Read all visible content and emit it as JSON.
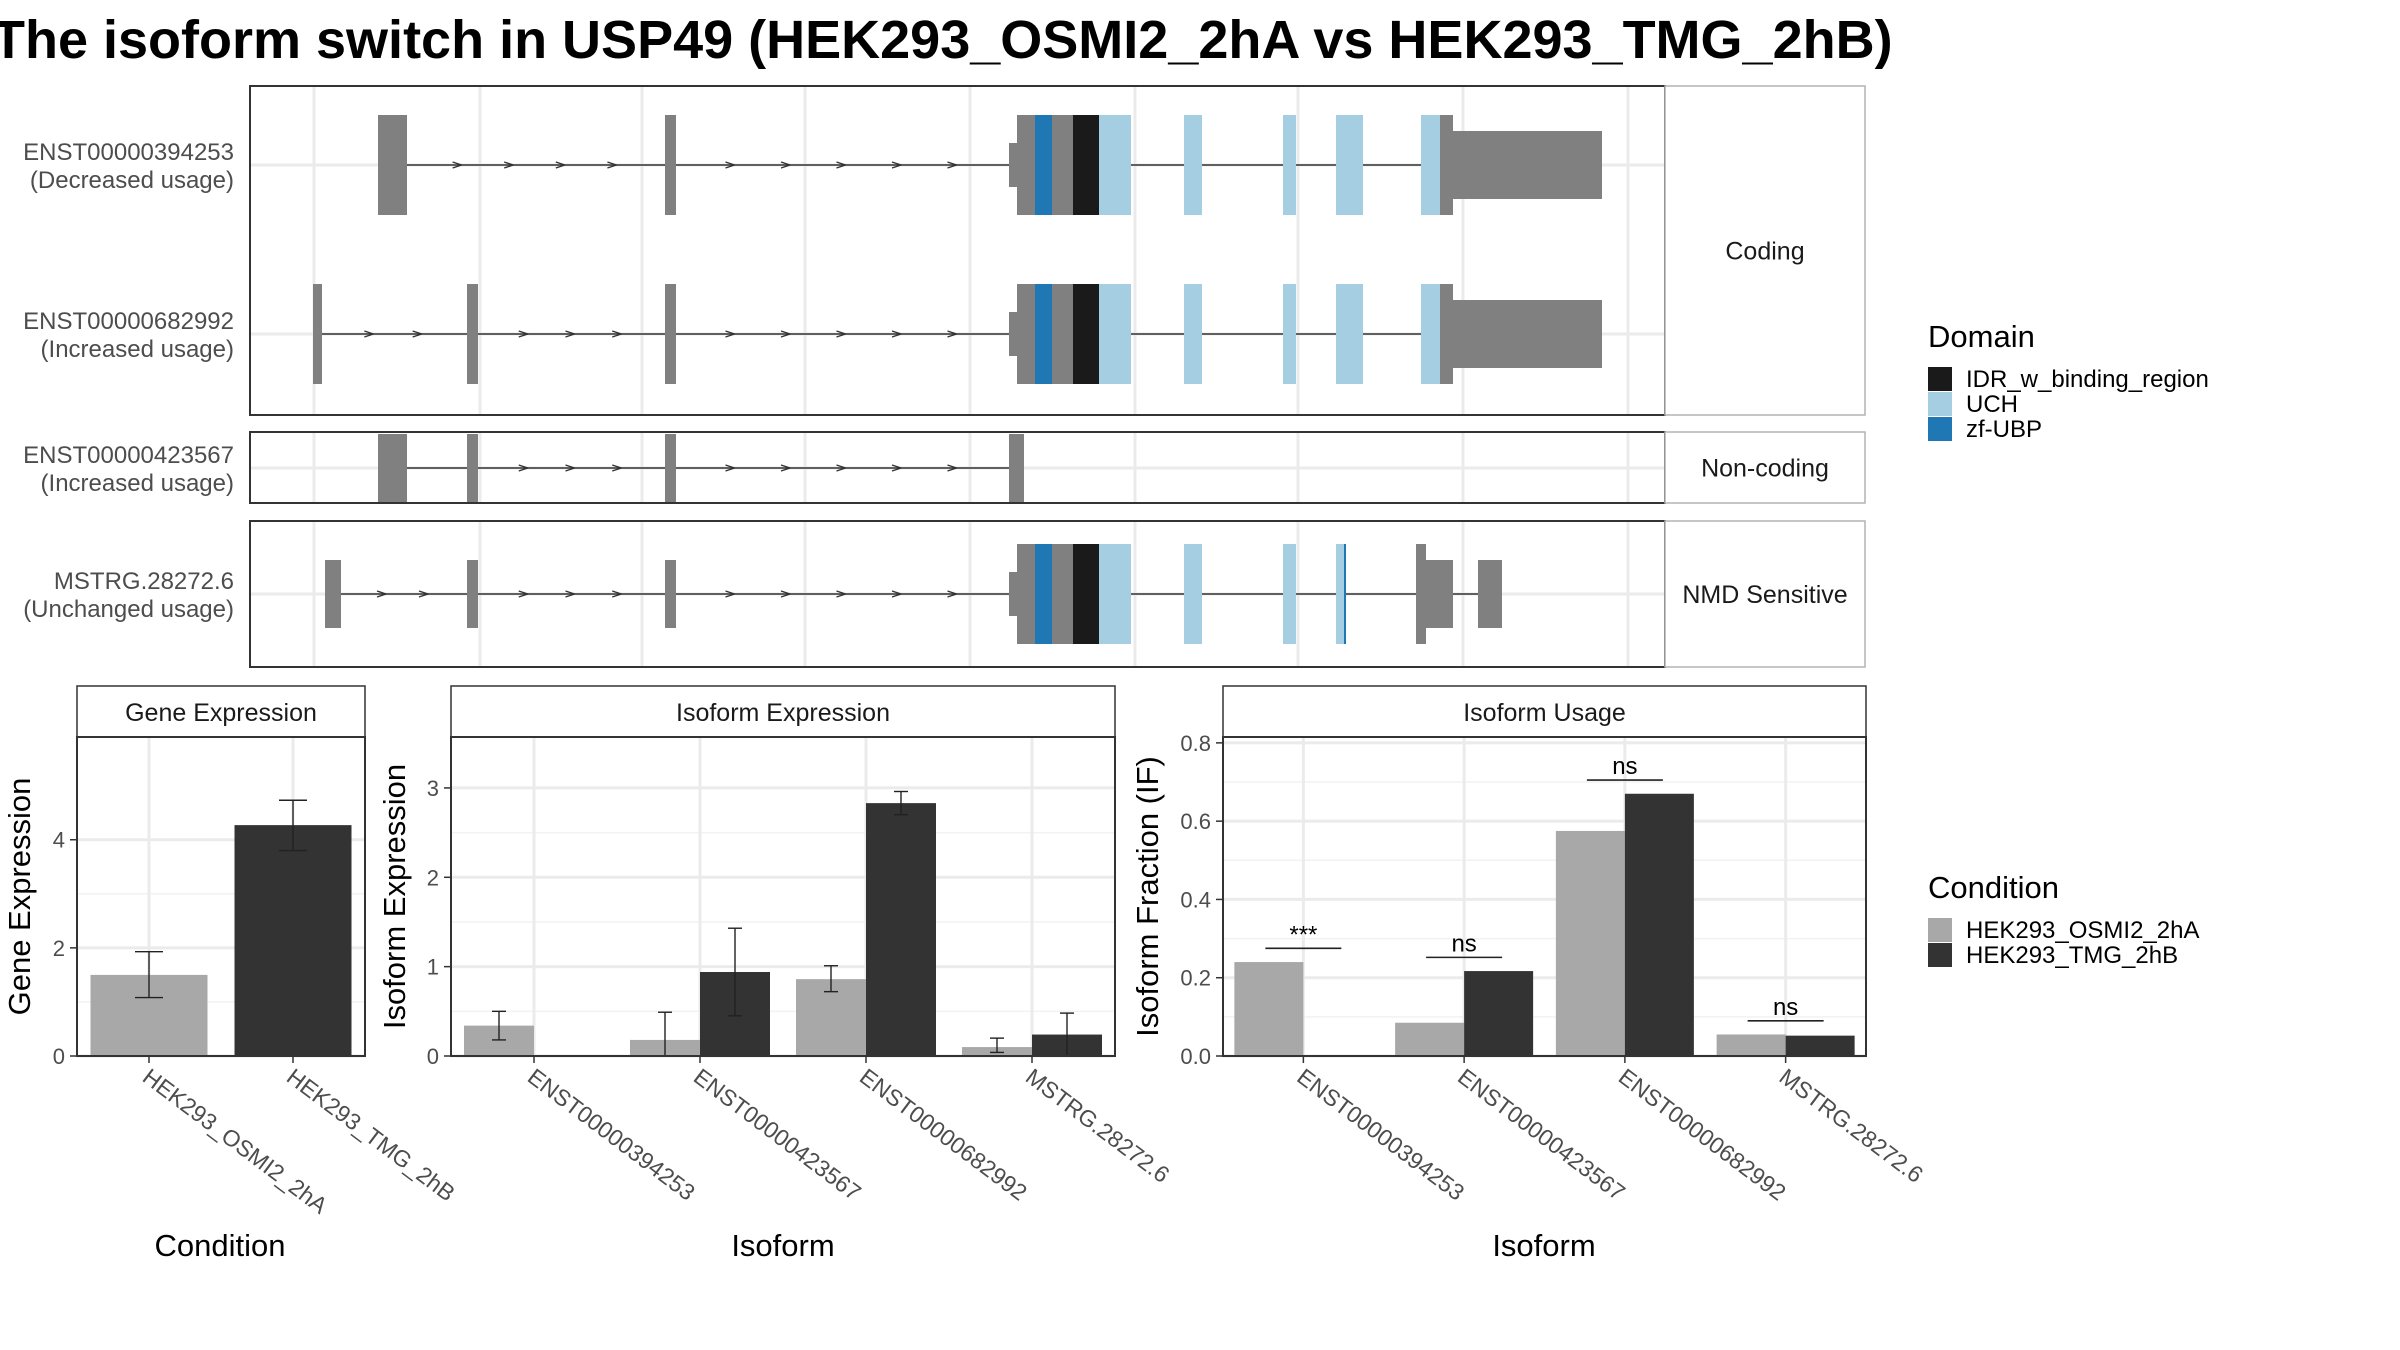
{
  "title": "The isoform switch in USP49 (HEK293_OSMI2_2hA vs HEK293_TMG_2hB)",
  "colors": {
    "exon": "#808080",
    "domain_IDR": "#1a1a1a",
    "domain_UCH": "#a6cee3",
    "domain_zfUBP": "#1f78b4",
    "cond_A": "#a8a8a8",
    "cond_B": "#333333"
  },
  "structure": {
    "facets": [
      {
        "label": "Coding",
        "transcripts": [
          "ENST00000394253",
          "ENST00000682992"
        ]
      },
      {
        "label": "Non-coding",
        "transcripts": [
          "ENST00000423567"
        ]
      },
      {
        "label": "NMD Sensitive",
        "transcripts": [
          "MSTRG.28272.6"
        ]
      }
    ],
    "transcripts": [
      {
        "id": "ENST00000394253",
        "usage": "(Decreased usage)"
      },
      {
        "id": "ENST00000682992",
        "usage": "(Increased usage)"
      },
      {
        "id": "ENST00000423567",
        "usage": "(Increased usage)"
      },
      {
        "id": "MSTRG.28272.6",
        "usage": "(Unchanged usage)"
      }
    ]
  },
  "legends": {
    "domain": {
      "title": "Domain",
      "items": [
        "IDR_w_binding_region",
        "UCH",
        "zf-UBP"
      ]
    },
    "condition": {
      "title": "Condition",
      "items": [
        "HEK293_OSMI2_2hA",
        "HEK293_TMG_2hB"
      ]
    }
  },
  "chart_data": [
    {
      "type": "bar",
      "title": "Gene Expression",
      "xlabel": "Condition",
      "ylabel": "Gene Expression",
      "ylim": [
        0,
        5.9
      ],
      "yticks": [
        0,
        2,
        4
      ],
      "categories": [
        "HEK293_OSMI2_2hA",
        "HEK293_TMG_2hB"
      ],
      "values": [
        1.5,
        4.27
      ],
      "errors": [
        [
          1.08,
          1.93
        ],
        [
          3.8,
          4.73
        ]
      ]
    },
    {
      "type": "bar",
      "title": "Isoform Expression",
      "xlabel": "Isoform",
      "ylabel": "Isoform Expression",
      "ylim": [
        0,
        3.57
      ],
      "yticks": [
        0,
        1,
        2,
        3
      ],
      "categories": [
        "ENST00000394253",
        "ENST00000423567",
        "ENST00000682992",
        "MSTRG.28272.6"
      ],
      "series": [
        {
          "name": "HEK293_OSMI2_2hA",
          "values": [
            0.34,
            0.18,
            0.86,
            0.1
          ],
          "errors": [
            [
              0.18,
              0.5
            ],
            [
              0.0,
              0.49
            ],
            [
              0.72,
              1.01
            ],
            [
              0.04,
              0.2
            ]
          ]
        },
        {
          "name": "HEK293_TMG_2hB",
          "values": [
            0.0,
            0.94,
            2.83,
            0.24
          ],
          "errors": [
            [
              0.0,
              0.0
            ],
            [
              0.45,
              1.43
            ],
            [
              2.7,
              2.96
            ],
            [
              0.0,
              0.48
            ]
          ]
        }
      ]
    },
    {
      "type": "bar",
      "title": "Isoform Usage",
      "xlabel": "Isoform",
      "ylabel": "Isoform Fraction (IF)",
      "ylim": [
        0,
        0.815
      ],
      "yticks": [
        "0.0",
        "0.2",
        "0.4",
        "0.6",
        "0.8"
      ],
      "categories": [
        "ENST00000394253",
        "ENST00000423567",
        "ENST00000682992",
        "MSTRG.28272.6"
      ],
      "series": [
        {
          "name": "HEK293_OSMI2_2hA",
          "values": [
            0.24,
            0.085,
            0.575,
            0.055
          ]
        },
        {
          "name": "HEK293_TMG_2hB",
          "values": [
            0.0,
            0.217,
            0.67,
            0.052
          ]
        }
      ],
      "significance": [
        "***",
        "ns",
        "ns",
        "ns"
      ]
    }
  ]
}
